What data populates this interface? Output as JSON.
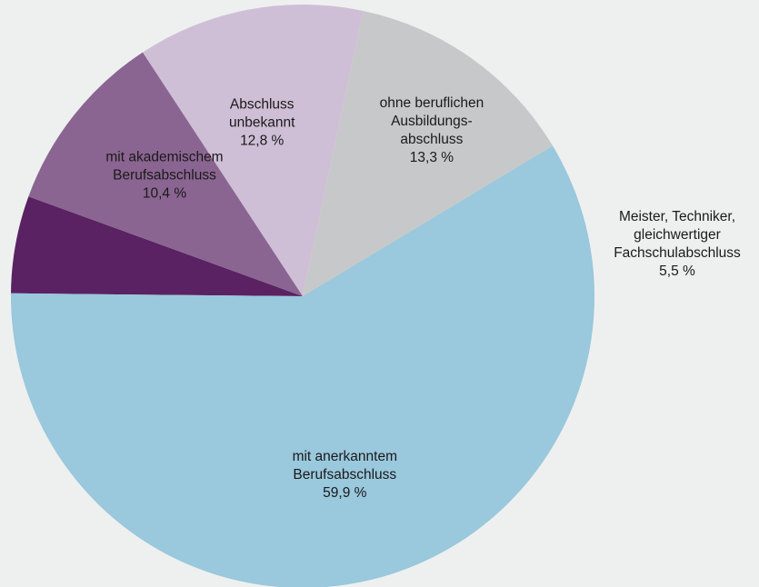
{
  "chart_data": {
    "type": "pie",
    "title": "",
    "start_angle_deg": 160,
    "direction": "counterclockwise",
    "slices": [
      {
        "name": "Meister, Techniker, gleichwertiger Fachschulabschluss",
        "value": 5.5,
        "value_label": "5,5 %",
        "label_lines": [
          "Meister, Techniker,",
          "gleichwertiger",
          "Fachschulabschluss"
        ],
        "label_position": "outside-right",
        "color": "#5a2262"
      },
      {
        "name": "mit anerkanntem Berufsabschluss",
        "value": 59.9,
        "value_label": "59,9 %",
        "label_lines": [
          "mit anerkanntem",
          "Berufsabschluss"
        ],
        "label_position": "inside",
        "color": "#9ac8dd"
      },
      {
        "name": "ohne beruflichen Ausbildungsabschluss",
        "value": 13.3,
        "value_label": "13,3 %",
        "label_lines": [
          "ohne beruflichen",
          "Ausbildungs-",
          "abschluss"
        ],
        "label_position": "inside",
        "color": "#c7c8c9"
      },
      {
        "name": "Abschluss unbekannt",
        "value": 12.8,
        "value_label": "12,8 %",
        "label_lines": [
          "Abschluss",
          "unbekannt"
        ],
        "label_position": "inside",
        "color": "#cfbfd6"
      },
      {
        "name": "mit akademischem Berufsabschluss",
        "value": 10.4,
        "value_label": "10,4 %",
        "label_lines": [
          "mit akademischem",
          "Berufsabschluss"
        ],
        "label_position": "inside",
        "color": "#8a6591"
      }
    ]
  }
}
